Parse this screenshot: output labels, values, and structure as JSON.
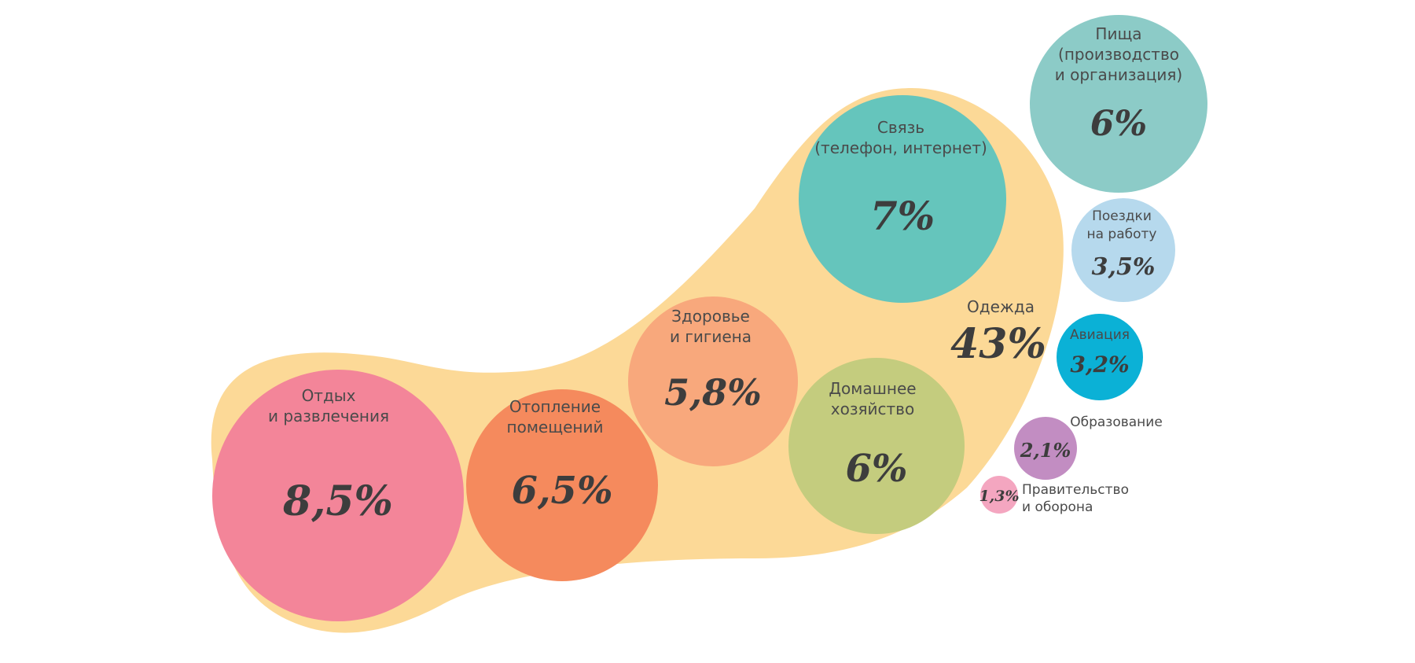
{
  "chart_data": {
    "type": "bubble",
    "title": "",
    "group": {
      "label": "Одежда",
      "value_label": "43%",
      "value": 43,
      "color": "#fcd997",
      "items": [
        {
          "label_lines": [
            "Отдых",
            "и развлечения"
          ],
          "value_label": "8,5%",
          "value": 8.5,
          "color": "#f38599"
        },
        {
          "label_lines": [
            "Отопление",
            "помещений"
          ],
          "value_label": "6,5%",
          "value": 6.5,
          "color": "#f58a5d"
        },
        {
          "label_lines": [
            "Здоровье",
            "и гигиена"
          ],
          "value_label": "5,8%",
          "value": 5.8,
          "color": "#f8a87c"
        },
        {
          "label_lines": [
            "Домашнее",
            "хозяйство"
          ],
          "value_label": "6%",
          "value": 6,
          "color": "#c4cc7e"
        },
        {
          "label_lines": [
            "Связь",
            "(телефон, интернет)"
          ],
          "value_label": "7%",
          "value": 7,
          "color": "#65c5bc"
        }
      ]
    },
    "others": [
      {
        "label_lines": [
          "Пища",
          "(производство",
          "и организация)"
        ],
        "value_label": "6%",
        "value": 6,
        "color": "#8ccbc7"
      },
      {
        "label_lines": [
          "Поездки",
          "на работу"
        ],
        "value_label": "3,5%",
        "value": 3.5,
        "color": "#b6d9ed"
      },
      {
        "label_lines": [
          "Авиация"
        ],
        "value_label": "3,2%",
        "value": 3.2,
        "color": "#0bb1d6"
      },
      {
        "label_lines": [
          "Образование"
        ],
        "value_label": "2,1%",
        "value": 2.1,
        "color": "#c28dc2"
      },
      {
        "label_lines": [
          "Правительство",
          "и оборона"
        ],
        "value_label": "1,3%",
        "value": 1.3,
        "color": "#f4a6c0"
      }
    ]
  }
}
